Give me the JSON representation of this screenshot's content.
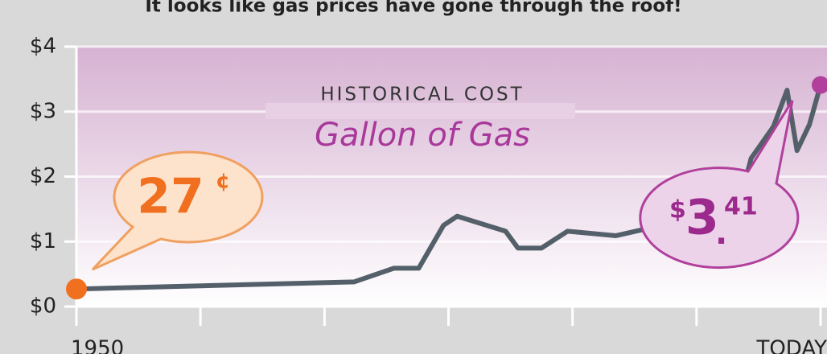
{
  "chart_data": {
    "type": "line",
    "title": "It looks like gas prices have gone through the roof!",
    "subtitle": "HISTORICAL COST",
    "headline": "Gallon of Gas",
    "x": [
      1950,
      1972.4,
      1975.6,
      1977.6,
      1979.6,
      1980.7,
      1984.6,
      1985.6,
      1987.5,
      1989.6,
      1993.5,
      1995.8,
      2000,
      2002,
      2004.1,
      2004.4,
      2006.2,
      2007.3,
      2008.1,
      2009.1,
      2010
    ],
    "values": [
      0.27,
      0.38,
      0.59,
      0.59,
      1.25,
      1.39,
      1.16,
      0.9,
      0.9,
      1.16,
      1.09,
      1.19,
      1.55,
      1.6,
      2.06,
      2.28,
      2.77,
      3.33,
      2.4,
      2.8,
      3.41
    ],
    "color": "#546069",
    "start_color": "#f07020",
    "end_color": "#b0409c",
    "xlim": [
      1950,
      2010
    ],
    "xticks": [
      1950,
      {
        "value": 2010,
        "label": "TODAY"
      }
    ],
    "xminor_ticks": [
      1960,
      1970,
      1980,
      1990,
      2000
    ],
    "ylim": [
      0,
      4
    ],
    "yticks": [
      {
        "value": 0,
        "label": "$0"
      },
      {
        "value": 1,
        "label": "$1"
      },
      {
        "value": 2,
        "label": "$2"
      },
      {
        "value": 3,
        "label": "$3"
      },
      {
        "value": 4,
        "label": "$4"
      }
    ],
    "grid": true,
    "start_callout": {
      "amount": "27",
      "unit": "¢"
    },
    "end_callout": {
      "currency": "$",
      "dollars": "3",
      "point": ".",
      "cents": "41"
    }
  }
}
